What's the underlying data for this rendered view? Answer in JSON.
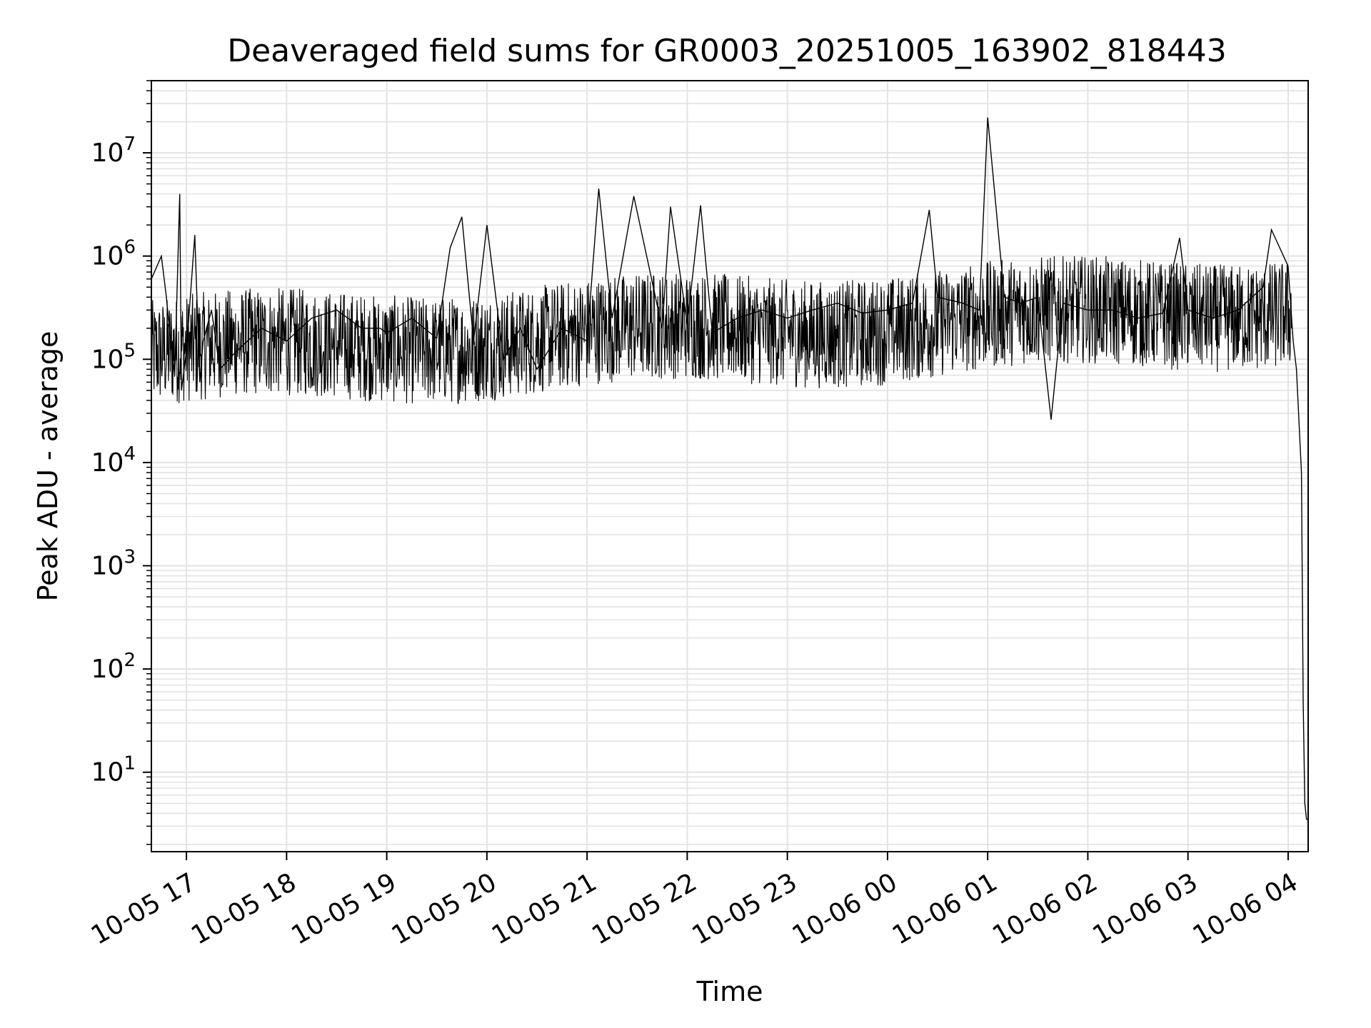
{
  "chart_data": {
    "type": "line",
    "title": "Deaveraged field sums for GR0003_20251005_163902_818443",
    "xlabel": "Time",
    "ylabel": "Peak ADU - average",
    "yscale": "log",
    "grid": true,
    "line_color": "#000000",
    "grid_color": "#e3e3e3",
    "x_ticks": [
      "10-05 17",
      "10-05 18",
      "10-05 19",
      "10-05 20",
      "10-05 21",
      "10-05 22",
      "10-05 23",
      "10-06 00",
      "10-06 01",
      "10-06 02",
      "10-06 03",
      "10-06 04"
    ],
    "xlim": [
      "2025-10-05 16:39",
      "2025-10-06 04:12"
    ],
    "y_ticks": [
      {
        "base": "10",
        "exp": "1"
      },
      {
        "base": "10",
        "exp": "2"
      },
      {
        "base": "10",
        "exp": "3"
      },
      {
        "base": "10",
        "exp": "4"
      },
      {
        "base": "10",
        "exp": "5"
      },
      {
        "base": "10",
        "exp": "6"
      },
      {
        "base": "10",
        "exp": "7"
      }
    ],
    "ylim": [
      1.7,
      50000000
    ],
    "series": [
      {
        "x": [
          "2025-10-05 16:39",
          "2025-10-05 16:45",
          "2025-10-05 16:48",
          "2025-10-05 16:50",
          "2025-10-05 16:53",
          "2025-10-05 16:56",
          "2025-10-05 16:57",
          "2025-10-05 17:00",
          "2025-10-05 17:05",
          "2025-10-05 17:08",
          "2025-10-05 17:10",
          "2025-10-05 17:15",
          "2025-10-05 17:20",
          "2025-10-05 17:30",
          "2025-10-05 17:45",
          "2025-10-05 18:00",
          "2025-10-05 18:15",
          "2025-10-05 18:30",
          "2025-10-05 18:45",
          "2025-10-05 18:56",
          "2025-10-05 19:00",
          "2025-10-05 19:15",
          "2025-10-05 19:30",
          "2025-10-05 19:38",
          "2025-10-05 19:45",
          "2025-10-05 19:52",
          "2025-10-05 20:00",
          "2025-10-05 20:10",
          "2025-10-05 20:20",
          "2025-10-05 20:30",
          "2025-10-05 20:45",
          "2025-10-05 21:00",
          "2025-10-05 21:07",
          "2025-10-05 21:15",
          "2025-10-05 21:28",
          "2025-10-05 21:45",
          "2025-10-05 21:50",
          "2025-10-05 22:00",
          "2025-10-05 22:08",
          "2025-10-05 22:15",
          "2025-10-05 22:30",
          "2025-10-05 22:45",
          "2025-10-05 23:00",
          "2025-10-05 23:15",
          "2025-10-05 23:30",
          "2025-10-05 23:45",
          "2025-10-06 00:00",
          "2025-10-06 00:15",
          "2025-10-06 00:25",
          "2025-10-06 00:30",
          "2025-10-06 00:45",
          "2025-10-06 00:55",
          "2025-10-06 01:00",
          "2025-10-06 01:10",
          "2025-10-06 01:20",
          "2025-10-06 01:30",
          "2025-10-06 01:38",
          "2025-10-06 01:45",
          "2025-10-06 02:00",
          "2025-10-06 02:15",
          "2025-10-06 02:30",
          "2025-10-06 02:45",
          "2025-10-06 02:55",
          "2025-10-06 03:00",
          "2025-10-06 03:15",
          "2025-10-06 03:30",
          "2025-10-06 03:45",
          "2025-10-06 03:50",
          "2025-10-06 04:00",
          "2025-10-06 04:03",
          "2025-10-06 04:05",
          "2025-10-06 04:08",
          "2025-10-06 04:09",
          "2025-10-06 04:10",
          "2025-10-06 04:11",
          "2025-10-06 04:12"
        ],
        "y": [
          600000,
          1000000,
          400000,
          180000,
          70000,
          4000000,
          50000,
          120000,
          1600000,
          60000,
          150000,
          300000,
          80000,
          120000,
          200000,
          150000,
          250000,
          300000,
          200000,
          200000,
          180000,
          250000,
          160000,
          1200000,
          2400000,
          150000,
          2000000,
          100000,
          200000,
          80000,
          200000,
          150000,
          4500000,
          250000,
          3800000,
          200000,
          3000000,
          220000,
          3100000,
          180000,
          250000,
          300000,
          250000,
          300000,
          350000,
          280000,
          300000,
          350000,
          2800000,
          400000,
          350000,
          300000,
          22000000,
          400000,
          350000,
          400000,
          26000,
          350000,
          300000,
          300000,
          250000,
          280000,
          1500000,
          300000,
          250000,
          300000,
          500000,
          1800000,
          800000,
          150000,
          80000,
          8000,
          50,
          5,
          3.5,
          3.5
        ]
      }
    ]
  }
}
